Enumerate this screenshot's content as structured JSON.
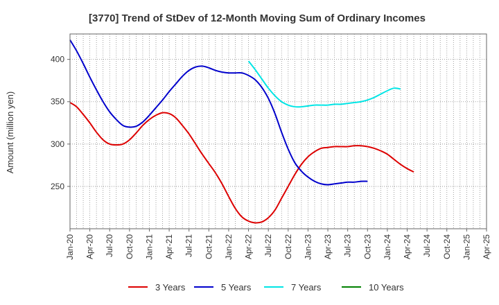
{
  "chart_data": {
    "type": "line",
    "title": "[3770]  Trend of StDev of 12-Month Moving Sum of Ordinary Incomes",
    "ylabel": "Amount (million yen)",
    "xlabel": "",
    "x_ticks": [
      "Jan-20",
      "Apr-20",
      "Jul-20",
      "Oct-20",
      "Jan-21",
      "Apr-21",
      "Jul-21",
      "Oct-21",
      "Jan-22",
      "Apr-22",
      "Jul-22",
      "Oct-22",
      "Jan-23",
      "Apr-23",
      "Jul-23",
      "Oct-23",
      "Jan-24",
      "Apr-24",
      "Jul-24",
      "Oct-24",
      "Jan-25",
      "Apr-25"
    ],
    "y_ticks": [
      250,
      300,
      350,
      400
    ],
    "ylim": [
      200,
      430
    ],
    "grid": true,
    "legend_position": "bottom",
    "series": [
      {
        "name": "3 Years",
        "color": "#dd0000",
        "points": [
          [
            "2020-01",
            349
          ],
          [
            "2020-02",
            344
          ],
          [
            "2020-03",
            335
          ],
          [
            "2020-04",
            325
          ],
          [
            "2020-05",
            314
          ],
          [
            "2020-06",
            305
          ],
          [
            "2020-07",
            300
          ],
          [
            "2020-08",
            299
          ],
          [
            "2020-09",
            300
          ],
          [
            "2020-10",
            305
          ],
          [
            "2020-11",
            313
          ],
          [
            "2020-12",
            322
          ],
          [
            "2021-01",
            329
          ],
          [
            "2021-02",
            334
          ],
          [
            "2021-03",
            337
          ],
          [
            "2021-04",
            336
          ],
          [
            "2021-05",
            331
          ],
          [
            "2021-06",
            322
          ],
          [
            "2021-07",
            312
          ],
          [
            "2021-08",
            300
          ],
          [
            "2021-09",
            288
          ],
          [
            "2021-10",
            277
          ],
          [
            "2021-11",
            266
          ],
          [
            "2021-12",
            253
          ],
          [
            "2022-01",
            238
          ],
          [
            "2022-02",
            224
          ],
          [
            "2022-03",
            214
          ],
          [
            "2022-04",
            209
          ],
          [
            "2022-05",
            207
          ],
          [
            "2022-06",
            208
          ],
          [
            "2022-07",
            213
          ],
          [
            "2022-08",
            222
          ],
          [
            "2022-09",
            236
          ],
          [
            "2022-10",
            250
          ],
          [
            "2022-11",
            264
          ],
          [
            "2022-12",
            276
          ],
          [
            "2023-01",
            285
          ],
          [
            "2023-02",
            291
          ],
          [
            "2023-03",
            295
          ],
          [
            "2023-04",
            296
          ],
          [
            "2023-05",
            297
          ],
          [
            "2023-06",
            297
          ],
          [
            "2023-07",
            297
          ],
          [
            "2023-08",
            298
          ],
          [
            "2023-09",
            298
          ],
          [
            "2023-10",
            297
          ],
          [
            "2023-11",
            295
          ],
          [
            "2023-12",
            292
          ],
          [
            "2024-01",
            288
          ],
          [
            "2024-02",
            282
          ],
          [
            "2024-03",
            276
          ],
          [
            "2024-04",
            271
          ],
          [
            "2024-05",
            267
          ]
        ]
      },
      {
        "name": "5 Years",
        "color": "#0000cc",
        "points": [
          [
            "2020-01",
            423
          ],
          [
            "2020-02",
            410
          ],
          [
            "2020-03",
            395
          ],
          [
            "2020-04",
            379
          ],
          [
            "2020-05",
            364
          ],
          [
            "2020-06",
            350
          ],
          [
            "2020-07",
            338
          ],
          [
            "2020-08",
            329
          ],
          [
            "2020-09",
            322
          ],
          [
            "2020-10",
            320
          ],
          [
            "2020-11",
            321
          ],
          [
            "2020-12",
            326
          ],
          [
            "2021-01",
            334
          ],
          [
            "2021-02",
            343
          ],
          [
            "2021-03",
            352
          ],
          [
            "2021-04",
            362
          ],
          [
            "2021-05",
            371
          ],
          [
            "2021-06",
            380
          ],
          [
            "2021-07",
            387
          ],
          [
            "2021-08",
            391
          ],
          [
            "2021-09",
            392
          ],
          [
            "2021-10",
            390
          ],
          [
            "2021-11",
            387
          ],
          [
            "2021-12",
            385
          ],
          [
            "2022-01",
            384
          ],
          [
            "2022-02",
            384
          ],
          [
            "2022-03",
            384
          ],
          [
            "2022-04",
            381
          ],
          [
            "2022-05",
            376
          ],
          [
            "2022-06",
            367
          ],
          [
            "2022-07",
            354
          ],
          [
            "2022-08",
            336
          ],
          [
            "2022-09",
            314
          ],
          [
            "2022-10",
            294
          ],
          [
            "2022-11",
            278
          ],
          [
            "2022-12",
            268
          ],
          [
            "2023-01",
            261
          ],
          [
            "2023-02",
            256
          ],
          [
            "2023-03",
            253
          ],
          [
            "2023-04",
            252
          ],
          [
            "2023-05",
            253
          ],
          [
            "2023-06",
            254
          ],
          [
            "2023-07",
            255
          ],
          [
            "2023-08",
            255
          ],
          [
            "2023-09",
            256
          ],
          [
            "2023-10",
            256
          ]
        ]
      },
      {
        "name": "7 Years",
        "color": "#00e5e5",
        "points": [
          [
            "2022-04",
            398
          ],
          [
            "2022-05",
            388
          ],
          [
            "2022-06",
            377
          ],
          [
            "2022-07",
            366
          ],
          [
            "2022-08",
            357
          ],
          [
            "2022-09",
            350
          ],
          [
            "2022-10",
            346
          ],
          [
            "2022-11",
            344
          ],
          [
            "2022-12",
            344
          ],
          [
            "2023-01",
            345
          ],
          [
            "2023-02",
            346
          ],
          [
            "2023-03",
            346
          ],
          [
            "2023-04",
            346
          ],
          [
            "2023-05",
            347
          ],
          [
            "2023-06",
            347
          ],
          [
            "2023-07",
            348
          ],
          [
            "2023-08",
            349
          ],
          [
            "2023-09",
            350
          ],
          [
            "2023-10",
            352
          ],
          [
            "2023-11",
            355
          ],
          [
            "2023-12",
            359
          ],
          [
            "2024-01",
            363
          ],
          [
            "2024-02",
            366
          ],
          [
            "2024-03",
            365
          ]
        ]
      },
      {
        "name": "10 Years",
        "color": "#008000",
        "points": []
      }
    ]
  }
}
